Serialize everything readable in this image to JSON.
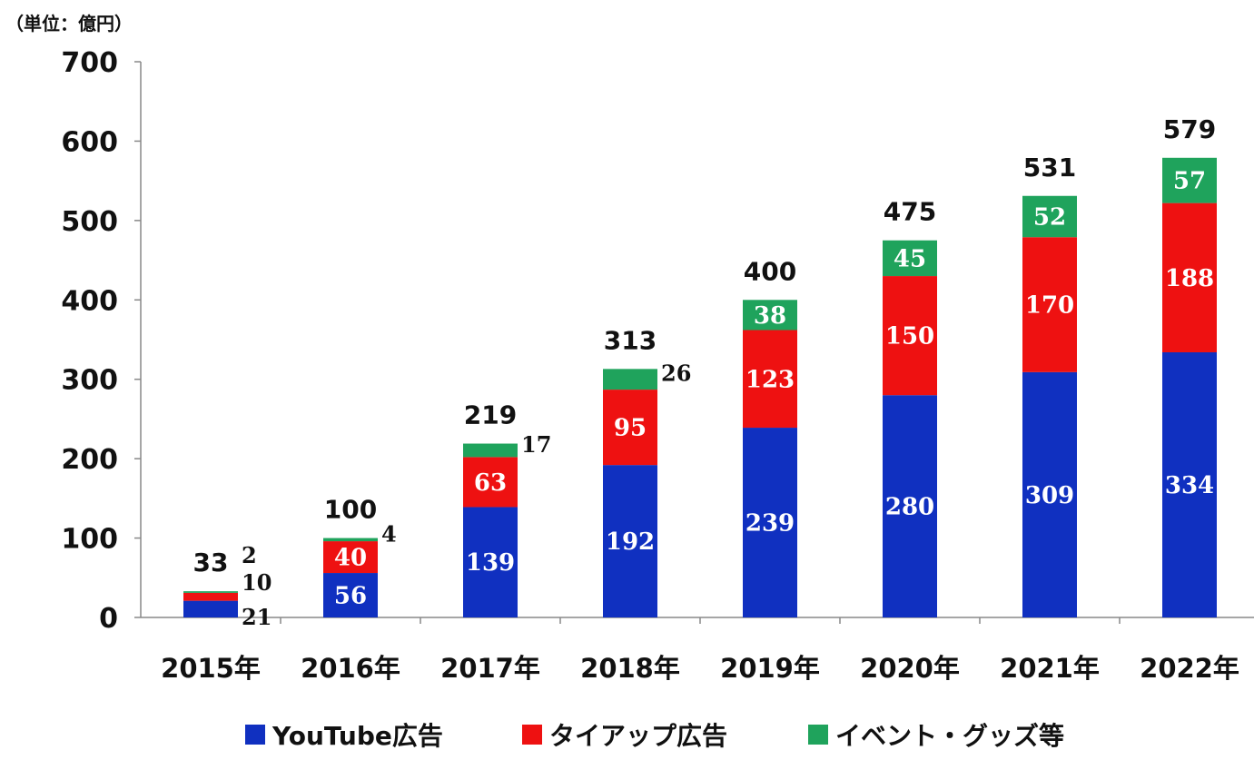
{
  "chart_data": {
    "type": "bar",
    "stacked": true,
    "unit_label": "（単位：億円）",
    "categories": [
      "2015年",
      "2016年",
      "2017年",
      "2018年",
      "2019年",
      "2020年",
      "2021年",
      "2022年"
    ],
    "ylim": [
      0,
      700
    ],
    "yticks": [
      "0",
      "100",
      "200",
      "300",
      "400",
      "500",
      "600",
      "700"
    ],
    "grid": false,
    "legend_position": "bottom",
    "series": [
      {
        "name": "YouTube広告",
        "color": "#1030C0",
        "values": [
          21,
          56,
          139,
          192,
          239,
          280,
          309,
          334
        ]
      },
      {
        "name": "タイアップ広告",
        "color": "#EE1111",
        "values": [
          10,
          40,
          63,
          95,
          123,
          150,
          170,
          188
        ]
      },
      {
        "name": "イベント・グッズ等",
        "color": "#1FA35C",
        "values": [
          2,
          4,
          17,
          26,
          38,
          45,
          52,
          57
        ]
      }
    ],
    "totals": [
      33,
      100,
      219,
      313,
      400,
      475,
      531,
      579
    ]
  }
}
